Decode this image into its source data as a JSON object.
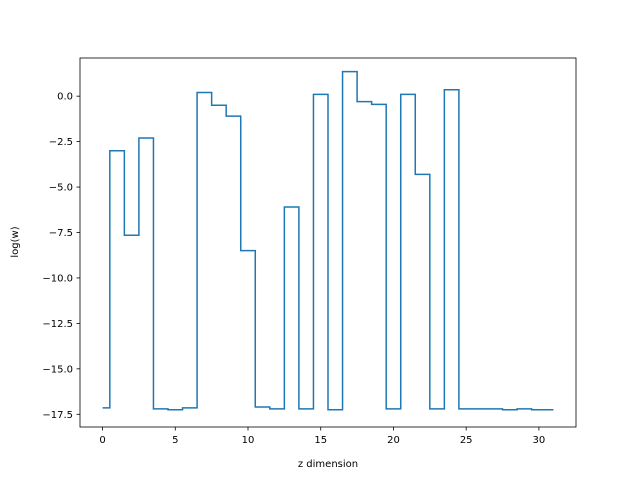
{
  "chart_data": {
    "type": "line",
    "step": "mid",
    "title": "",
    "xlabel": "z dimension",
    "ylabel": "log(w)",
    "xlim": [
      -1.55,
      32.55
    ],
    "ylim": [
      -18.2,
      2.1
    ],
    "xticks": [
      0,
      5,
      10,
      15,
      20,
      25,
      30
    ],
    "xtick_labels": [
      "0",
      "5",
      "10",
      "15",
      "20",
      "25",
      "30"
    ],
    "yticks": [
      0.0,
      -2.5,
      -5.0,
      -7.5,
      -10.0,
      -12.5,
      -15.0,
      -17.5
    ],
    "ytick_labels": [
      "0.0",
      "−2.5",
      "−5.0",
      "−7.5",
      "−10.0",
      "−12.5",
      "−15.0",
      "−17.5"
    ],
    "grid": false,
    "series": [
      {
        "color": "#1f77b4",
        "x": [
          0,
          1,
          2,
          3,
          4,
          5,
          6,
          7,
          8,
          9,
          10,
          11,
          12,
          13,
          14,
          15,
          16,
          17,
          18,
          19,
          20,
          21,
          22,
          23,
          24,
          25,
          26,
          27,
          28,
          29,
          30,
          31
        ],
        "y": [
          -17.15,
          -3.0,
          -7.65,
          -2.3,
          -17.2,
          -17.25,
          -17.15,
          0.2,
          -0.5,
          -1.1,
          -8.5,
          -17.1,
          -17.2,
          -6.1,
          -17.2,
          0.1,
          -17.25,
          1.35,
          -0.3,
          -0.45,
          -17.2,
          0.1,
          -4.3,
          -17.2,
          0.35,
          -17.2,
          -17.2,
          -17.2,
          -17.25,
          -17.2,
          -17.25,
          -17.25
        ]
      }
    ]
  }
}
